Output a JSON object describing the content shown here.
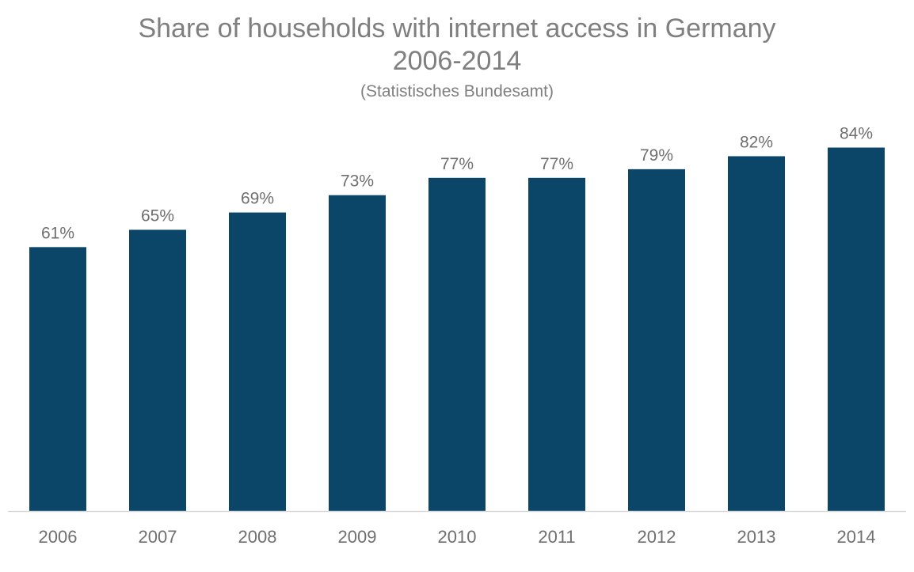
{
  "chart_data": {
    "type": "bar",
    "title": "Share of households with internet access in Germany",
    "title_line2": "2006-2014",
    "subtitle": "(Statistisches Bundesamt)",
    "categories": [
      "2006",
      "2007",
      "2008",
      "2009",
      "2010",
      "2011",
      "2012",
      "2013",
      "2014"
    ],
    "values": [
      61,
      65,
      69,
      73,
      77,
      77,
      79,
      82,
      84
    ],
    "data_labels": [
      "61%",
      "65%",
      "69%",
      "73%",
      "77%",
      "77%",
      "79%",
      "82%",
      "84%"
    ],
    "unit": "%",
    "ylim": [
      0,
      100
    ],
    "grid": false,
    "legend": "none",
    "colors": {
      "bar": "#0b4668",
      "text": "#7f7f7f",
      "axis": "#d9d9d9"
    }
  }
}
